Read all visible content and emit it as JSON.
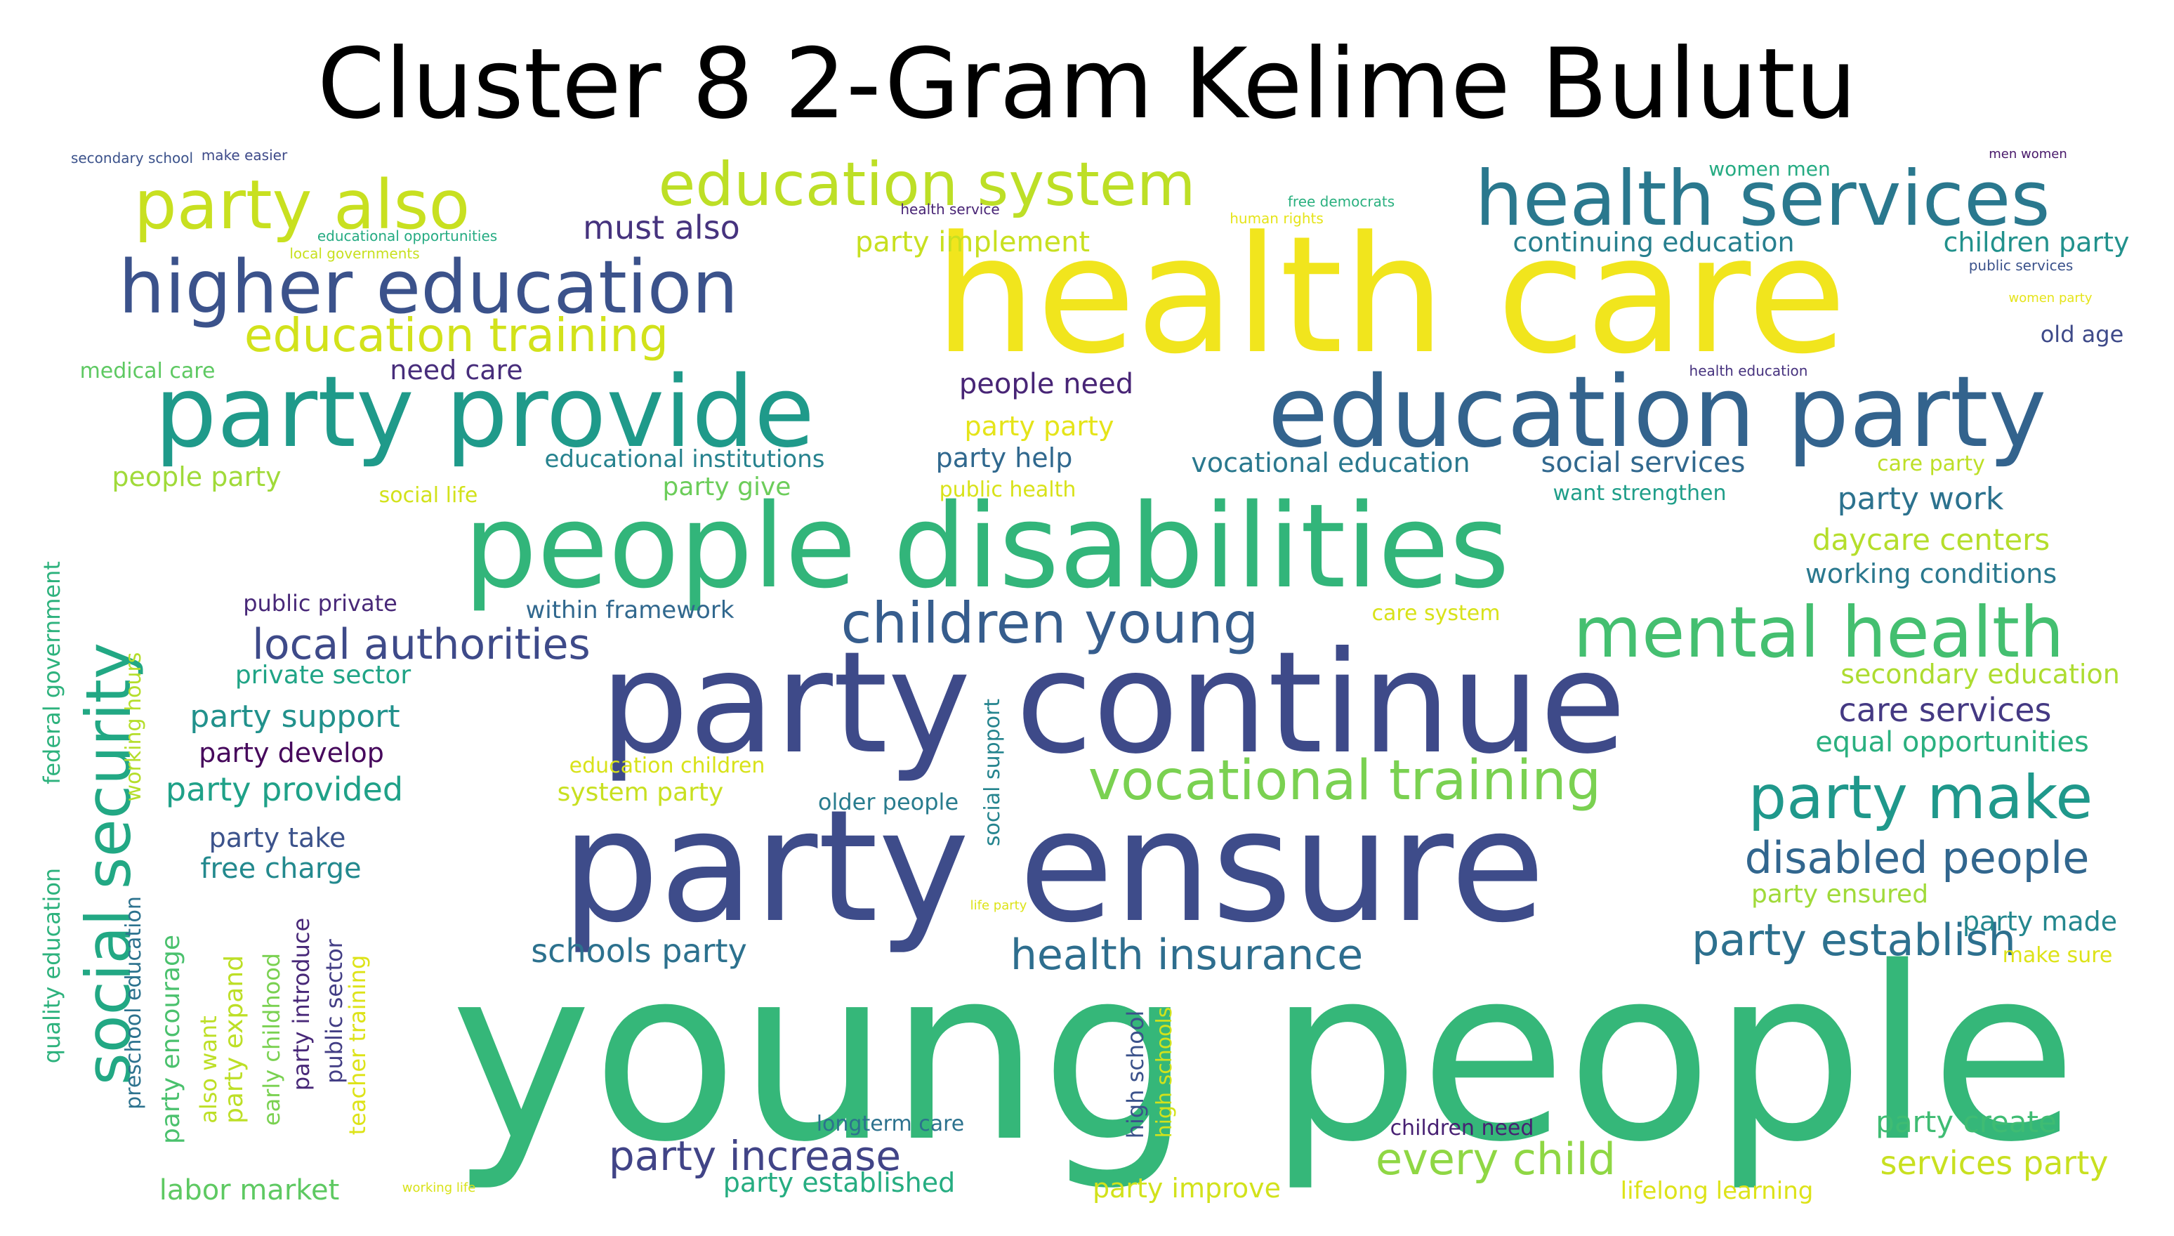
{
  "title": "Cluster 8 2-Gram Kelime Bulutu",
  "words": [
    {
      "text": "young people",
      "color": "#35b779"
    },
    {
      "text": "health care",
      "color": "#f1e51d"
    },
    {
      "text": "party ensure",
      "color": "#3e4c8a"
    },
    {
      "text": "party continue",
      "color": "#3e4a89"
    },
    {
      "text": "people disabilities",
      "color": "#32b57a"
    },
    {
      "text": "education party",
      "color": "#33638d"
    },
    {
      "text": "party provide",
      "color": "#1f9a8a"
    },
    {
      "text": "health services",
      "color": "#2a788e"
    },
    {
      "text": "higher education",
      "color": "#3b528b"
    },
    {
      "text": "education system",
      "color": "#bddf26"
    },
    {
      "text": "party also",
      "color": "#c8e020"
    },
    {
      "text": "social security",
      "color": "#22a884"
    },
    {
      "text": "mental health",
      "color": "#44bf70"
    },
    {
      "text": "children young",
      "color": "#365d8d"
    },
    {
      "text": "vocational training",
      "color": "#7ad151"
    },
    {
      "text": "party make",
      "color": "#1f988b"
    },
    {
      "text": "education training",
      "color": "#d2e21b"
    },
    {
      "text": "local authorities",
      "color": "#3e4a89"
    },
    {
      "text": "disabled people",
      "color": "#31668e"
    },
    {
      "text": "party establish",
      "color": "#2d708e"
    },
    {
      "text": "health insurance",
      "color": "#2e6e8e"
    },
    {
      "text": "party increase",
      "color": "#414487"
    },
    {
      "text": "every child",
      "color": "#8fd744"
    },
    {
      "text": "must also",
      "color": "#46337e"
    },
    {
      "text": "party implement",
      "color": "#c8e020"
    },
    {
      "text": "continuing education",
      "color": "#277f8e"
    },
    {
      "text": "children party",
      "color": "#21918c"
    },
    {
      "text": "need care",
      "color": "#472d7b"
    },
    {
      "text": "people need",
      "color": "#482576"
    },
    {
      "text": "medical care",
      "color": "#5ec962"
    },
    {
      "text": "party party",
      "color": "#e5e419"
    },
    {
      "text": "party help",
      "color": "#30688e"
    },
    {
      "text": "educational institutions",
      "color": "#26828e"
    },
    {
      "text": "vocational education",
      "color": "#2a788e"
    },
    {
      "text": "social services",
      "color": "#31688e"
    },
    {
      "text": "care party",
      "color": "#bddf26"
    },
    {
      "text": "people party",
      "color": "#a0da39"
    },
    {
      "text": "party give",
      "color": "#6ccd5a"
    },
    {
      "text": "public health",
      "color": "#d8e219"
    },
    {
      "text": "social life",
      "color": "#d2e21b"
    },
    {
      "text": "want strengthen",
      "color": "#1f9e89"
    },
    {
      "text": "party work",
      "color": "#2c728e"
    },
    {
      "text": "daycare centers",
      "color": "#b5de2b"
    },
    {
      "text": "working conditions",
      "color": "#2a788e"
    },
    {
      "text": "public private",
      "color": "#482878"
    },
    {
      "text": "within framework",
      "color": "#31688e"
    },
    {
      "text": "care system",
      "color": "#d8e219"
    },
    {
      "text": "private sector",
      "color": "#20a486"
    },
    {
      "text": "secondary education",
      "color": "#addc30"
    },
    {
      "text": "care services",
      "color": "#443983"
    },
    {
      "text": "party support",
      "color": "#21918c"
    },
    {
      "text": "equal opportunities",
      "color": "#2ab07f"
    },
    {
      "text": "party develop",
      "color": "#46085c"
    },
    {
      "text": "education children",
      "color": "#d8e219"
    },
    {
      "text": "party provided",
      "color": "#1fa188"
    },
    {
      "text": "system party",
      "color": "#c8e020"
    },
    {
      "text": "older people",
      "color": "#287c8e"
    },
    {
      "text": "party take",
      "color": "#3b528b"
    },
    {
      "text": "free charge",
      "color": "#23898e"
    },
    {
      "text": "party ensured",
      "color": "#a0da39"
    },
    {
      "text": "party made",
      "color": "#24878e"
    },
    {
      "text": "make sure",
      "color": "#dde318"
    },
    {
      "text": "schools party",
      "color": "#2c718e"
    },
    {
      "text": "party create",
      "color": "#3fbc73"
    },
    {
      "text": "services party",
      "color": "#c8e020"
    },
    {
      "text": "longterm care",
      "color": "#2c728e"
    },
    {
      "text": "children need",
      "color": "#482173"
    },
    {
      "text": "labor market",
      "color": "#5ec962"
    },
    {
      "text": "party established",
      "color": "#26ad81"
    },
    {
      "text": "party improve",
      "color": "#d2e21b"
    },
    {
      "text": "lifelong learning",
      "color": "#dde318"
    },
    {
      "text": "old age",
      "color": "#3e4a89"
    },
    {
      "text": "women men",
      "color": "#25ab82"
    },
    {
      "text": "secondary school",
      "color": "#3b528b"
    },
    {
      "text": "make easier",
      "color": "#3e4a89"
    },
    {
      "text": "educational opportunities",
      "color": "#25ab82"
    },
    {
      "text": "local governments",
      "color": "#c8e020"
    },
    {
      "text": "health service",
      "color": "#482475"
    },
    {
      "text": "free democrats",
      "color": "#2ab07f"
    },
    {
      "text": "human rights",
      "color": "#e5e419"
    },
    {
      "text": "men women",
      "color": "#48186a"
    },
    {
      "text": "public services",
      "color": "#3b528b"
    },
    {
      "text": "women party",
      "color": "#e5e419"
    },
    {
      "text": "health education",
      "color": "#46327e"
    },
    {
      "text": "life party",
      "color": "#dde318"
    },
    {
      "text": "working life",
      "color": "#d8e219"
    },
    {
      "text": "quality education",
      "color": "#2db27d"
    },
    {
      "text": "federal government",
      "color": "#2db27d"
    },
    {
      "text": "working hours",
      "color": "#b5de2b"
    },
    {
      "text": "preschool education",
      "color": "#2c728e"
    },
    {
      "text": "party encourage",
      "color": "#4ac16d"
    },
    {
      "text": "also want",
      "color": "#bddf26"
    },
    {
      "text": "party expand",
      "color": "#bddf26"
    },
    {
      "text": "early childhood",
      "color": "#7ad151"
    },
    {
      "text": "party introduce",
      "color": "#482878"
    },
    {
      "text": "public sector",
      "color": "#433e85"
    },
    {
      "text": "teacher training",
      "color": "#dde318"
    },
    {
      "text": "social support",
      "color": "#25848e"
    },
    {
      "text": "high school",
      "color": "#3b528b"
    },
    {
      "text": "high schools",
      "color": "#d2e21b"
    }
  ]
}
